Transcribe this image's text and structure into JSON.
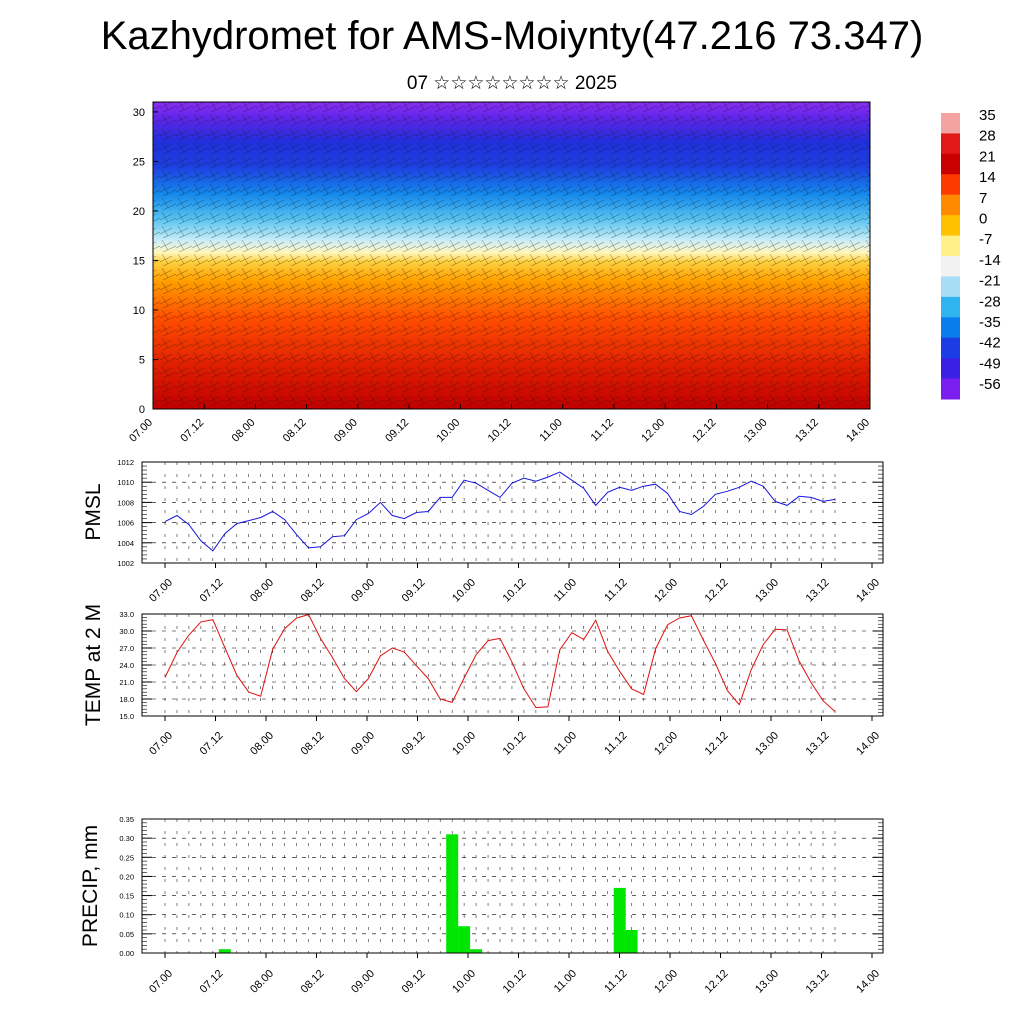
{
  "title": "Kazhydromet for AMS-Moiynty(47.216 73.347)",
  "subtitle": "07 ☆☆☆☆☆☆☆☆ 2025",
  "x_ticks": [
    "07.00",
    "07.12",
    "08.00",
    "08.12",
    "09.00",
    "09.12",
    "10.00",
    "10.12",
    "11.00",
    "11.12",
    "12.00",
    "12.12",
    "13.00",
    "13.12",
    "14.00"
  ],
  "chart_data": [
    {
      "type": "heatmap",
      "name_hint": "cross-section",
      "y_ticks": [
        "0",
        "5",
        "10",
        "15",
        "20",
        "25",
        "30"
      ],
      "ylim": [
        0,
        31
      ],
      "colorbar": {
        "labels": [
          "35",
          "28",
          "21",
          "14",
          "7",
          "0",
          "-7",
          "-14",
          "-21",
          "-28",
          "-35",
          "-42",
          "-49",
          "-56"
        ],
        "colors": [
          "#f4a3a3",
          "#e01818",
          "#c80000",
          "#ff3a00",
          "#ff8a00",
          "#ffc000",
          "#fff08a",
          "#f2f2f2",
          "#a8def5",
          "#30b4ef",
          "#0a7cec",
          "#1c3ce6",
          "#3a20e6",
          "#7a1ef0"
        ]
      }
    },
    {
      "type": "line",
      "ylabel": "PMSL",
      "ylim": [
        1002,
        1012
      ],
      "y_ticks": [
        "1002",
        "1004",
        "1006",
        "1008",
        "1010",
        "1012"
      ],
      "color": "#1515dd",
      "x": [
        0,
        1,
        2,
        3,
        4,
        5,
        6,
        7,
        8,
        9,
        10,
        11,
        12,
        13,
        14,
        15,
        16,
        17,
        18,
        19,
        20,
        21,
        22,
        23,
        24,
        25,
        26,
        27,
        28,
        29,
        30,
        31,
        32,
        33,
        34,
        35,
        36,
        37,
        38,
        39,
        40,
        41,
        42,
        43,
        44,
        45,
        46,
        47,
        48,
        49,
        50,
        51,
        52,
        53,
        54,
        55,
        56
      ],
      "values": [
        1006.1,
        1006.7,
        1005.8,
        1004.2,
        1003.2,
        1004.9,
        1005.9,
        1006.2,
        1006.5,
        1007.1,
        1006.3,
        1004.8,
        1003.5,
        1003.6,
        1004.6,
        1004.7,
        1006.3,
        1006.9,
        1008.0,
        1006.7,
        1006.4,
        1007.0,
        1007.1,
        1008.5,
        1008.5,
        1010.2,
        1009.9,
        1009.2,
        1008.5,
        1009.9,
        1010.4,
        1010.1,
        1010.5,
        1011.0,
        1010.2,
        1009.4,
        1007.7,
        1009.0,
        1009.5,
        1009.2,
        1009.6,
        1009.8,
        1008.9,
        1007.1,
        1006.8,
        1007.6,
        1008.8,
        1009.1,
        1009.5,
        1010.1,
        1009.6,
        1008.1,
        1007.7,
        1008.6,
        1008.5,
        1008.1,
        1008.3
      ]
    },
    {
      "type": "line",
      "ylabel": "TEMP at 2 M",
      "ylim": [
        15,
        33
      ],
      "y_ticks": [
        "15.0",
        "18.0",
        "21.0",
        "24.0",
        "27.0",
        "30.0",
        "33.0"
      ],
      "color": "#e01010",
      "x": [
        0,
        1,
        2,
        3,
        4,
        5,
        6,
        7,
        8,
        9,
        10,
        11,
        12,
        13,
        14,
        15,
        16,
        17,
        18,
        19,
        20,
        21,
        22,
        23,
        24,
        25,
        26,
        27,
        28,
        29,
        30,
        31,
        32,
        33,
        34,
        35,
        36,
        37,
        38,
        39,
        40,
        41,
        42,
        43,
        44,
        45,
        46,
        47,
        48,
        49,
        50,
        51,
        52,
        53,
        54,
        55,
        56
      ],
      "values": [
        21.8,
        26.2,
        29.3,
        31.6,
        32.0,
        27.1,
        22.2,
        19.2,
        18.5,
        26.8,
        30.4,
        32.3,
        32.9,
        28.7,
        25.3,
        21.6,
        19.3,
        21.6,
        25.6,
        27.0,
        26.3,
        23.9,
        21.6,
        18.0,
        17.4,
        21.7,
        25.8,
        28.3,
        28.7,
        24.5,
        19.8,
        16.5,
        16.6,
        26.7,
        29.7,
        28.5,
        31.9,
        26.4,
        22.9,
        19.8,
        18.8,
        26.8,
        31.1,
        32.3,
        32.7,
        28.4,
        24.3,
        19.5,
        17.0,
        23.2,
        27.6,
        30.3,
        30.2,
        24.7,
        20.9,
        17.7,
        15.8
      ]
    },
    {
      "type": "bar",
      "ylabel": "PRECIP, mm",
      "ylim": [
        0,
        0.35
      ],
      "y_ticks": [
        "0.00",
        "0.05",
        "0.10",
        "0.15",
        "0.20",
        "0.25",
        "0.30",
        "0.35"
      ],
      "color": "#00e600",
      "x": [
        5,
        24,
        25,
        26,
        38,
        39
      ],
      "values": [
        0.01,
        0.31,
        0.07,
        0.01,
        0.17,
        0.06
      ]
    }
  ]
}
